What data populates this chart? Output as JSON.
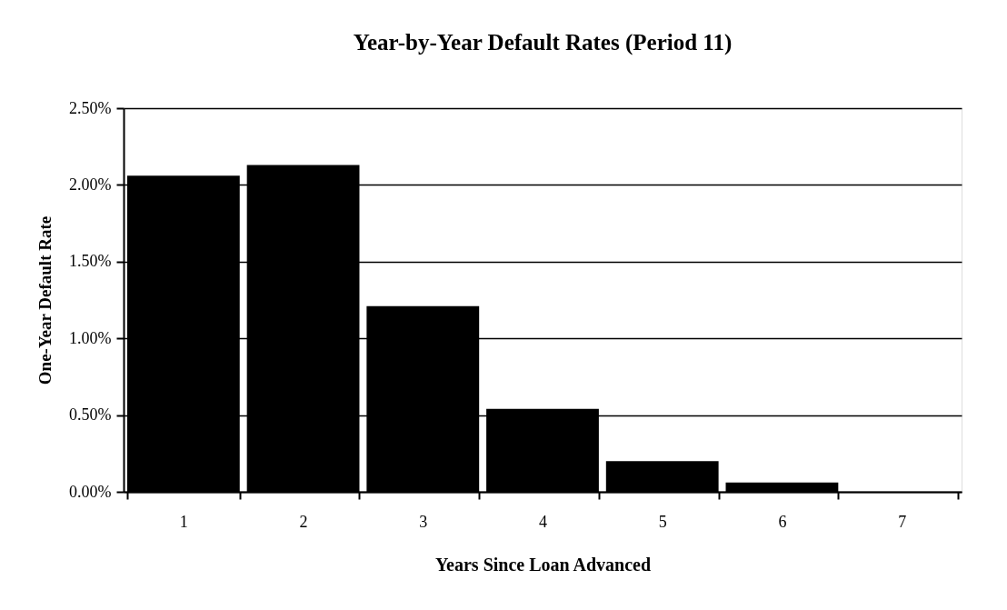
{
  "chart_data": {
    "type": "bar",
    "title": "Year-by-Year Default Rates (Period 11)",
    "xlabel": "Years Since Loan Advanced",
    "ylabel": "One-Year Default Rate",
    "categories": [
      "1",
      "2",
      "3",
      "4",
      "5",
      "6",
      "7"
    ],
    "values": [
      2.06,
      2.13,
      1.21,
      0.54,
      0.2,
      0.06,
      0
    ],
    "color": "#000000",
    "ylim": [
      0,
      2.5
    ],
    "yticks": [
      {
        "value": 0,
        "label": "0.00%"
      },
      {
        "value": 0.5,
        "label": "0.50%"
      },
      {
        "value": 1,
        "label": "1.00%"
      },
      {
        "value": 1.5,
        "label": "1.50%"
      },
      {
        "value": 2,
        "label": "2.00%"
      },
      {
        "value": 2.5,
        "label": "2.50%"
      }
    ],
    "grid": "y"
  }
}
